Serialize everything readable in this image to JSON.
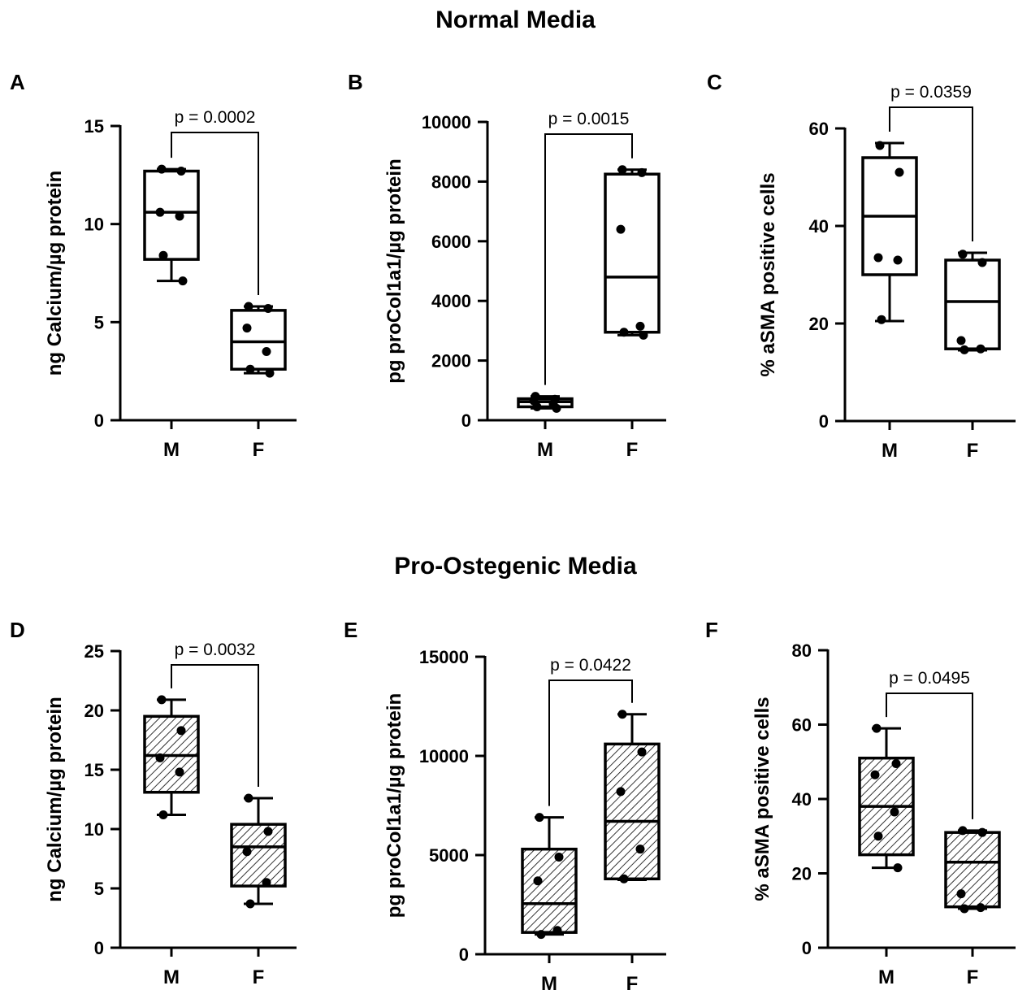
{
  "sections": {
    "top": "Normal Media",
    "bottom": "Pro-Ostegenic Media"
  },
  "chart_data": [
    {
      "type": "box",
      "panel": "A",
      "ylabel": "ng Calcium/µg protein",
      "ylim": [
        0,
        15
      ],
      "yticks": [
        0,
        5,
        10,
        15
      ],
      "categories": [
        "M",
        "F"
      ],
      "hatched": false,
      "pvalue": "p = 0.0002",
      "boxes": [
        {
          "category": "M",
          "min": 7.1,
          "q1": 8.2,
          "median": 10.6,
          "q3": 12.7,
          "max": 12.8,
          "points": [
            12.8,
            12.7,
            10.6,
            10.4,
            8.4,
            7.1
          ]
        },
        {
          "category": "F",
          "min": 2.4,
          "q1": 2.6,
          "median": 4.0,
          "q3": 5.6,
          "max": 5.8,
          "points": [
            5.8,
            5.7,
            4.7,
            3.5,
            2.6,
            2.4
          ]
        }
      ]
    },
    {
      "type": "box",
      "panel": "B",
      "ylabel": "pg proCol1a1/µg protein",
      "ylim": [
        0,
        10000
      ],
      "yticks": [
        0,
        2000,
        4000,
        6000,
        8000,
        10000
      ],
      "categories": [
        "M",
        "F"
      ],
      "hatched": false,
      "pvalue": "p = 0.0015",
      "boxes": [
        {
          "category": "M",
          "min": 400,
          "q1": 450,
          "median": 620,
          "q3": 720,
          "max": 800,
          "points": [
            800,
            700,
            650,
            550,
            450,
            400
          ]
        },
        {
          "category": "F",
          "min": 2850,
          "q1": 2950,
          "median": 4800,
          "q3": 8250,
          "max": 8400,
          "points": [
            8400,
            8300,
            6400,
            3150,
            2950,
            2850
          ]
        }
      ]
    },
    {
      "type": "box",
      "panel": "C",
      "ylabel": "% aSMA positive cells",
      "ylim": [
        0,
        60
      ],
      "yticks": [
        0,
        20,
        40,
        60
      ],
      "categories": [
        "M",
        "F"
      ],
      "hatched": false,
      "pvalue": "p = 0.0359",
      "boxes": [
        {
          "category": "M",
          "min": 20.5,
          "q1": 30.0,
          "median": 42.0,
          "q3": 54.0,
          "max": 57.0,
          "points": [
            56.5,
            51.0,
            33.5,
            33.0,
            20.8
          ]
        },
        {
          "category": "F",
          "min": 14.5,
          "q1": 14.8,
          "median": 24.5,
          "q3": 33.0,
          "max": 34.5,
          "points": [
            34.2,
            32.5,
            16.5,
            14.8,
            14.6
          ]
        }
      ]
    },
    {
      "type": "box",
      "panel": "D",
      "ylabel": "ng Calcium/µg protein",
      "ylim": [
        0,
        25
      ],
      "yticks": [
        0,
        5,
        10,
        15,
        20,
        25
      ],
      "categories": [
        "M",
        "F"
      ],
      "hatched": true,
      "pvalue": "p = 0.0032",
      "boxes": [
        {
          "category": "M",
          "min": 11.2,
          "q1": 13.1,
          "median": 16.2,
          "q3": 19.5,
          "max": 20.9,
          "points": [
            20.9,
            18.3,
            16.0,
            14.8,
            11.2
          ]
        },
        {
          "category": "F",
          "min": 3.7,
          "q1": 5.2,
          "median": 8.5,
          "q3": 10.4,
          "max": 12.6,
          "points": [
            12.6,
            9.8,
            8.1,
            5.5,
            3.7
          ]
        }
      ]
    },
    {
      "type": "box",
      "panel": "E",
      "ylabel": "pg proCol1a1/µg protein",
      "ylim": [
        0,
        15000
      ],
      "yticks": [
        0,
        5000,
        10000,
        15000
      ],
      "categories": [
        "M",
        "F"
      ],
      "hatched": true,
      "pvalue": "p = 0.0422",
      "boxes": [
        {
          "category": "M",
          "min": 1000,
          "q1": 1100,
          "median": 2550,
          "q3": 5300,
          "max": 6900,
          "points": [
            6900,
            4900,
            3700,
            1200,
            1000
          ]
        },
        {
          "category": "F",
          "min": 3750,
          "q1": 3800,
          "median": 6700,
          "q3": 10600,
          "max": 12100,
          "points": [
            12100,
            10200,
            8200,
            5300,
            3800
          ]
        }
      ]
    },
    {
      "type": "box",
      "panel": "F",
      "ylabel": "% aSMA positive cells",
      "ylim": [
        0,
        80
      ],
      "yticks": [
        0,
        20,
        40,
        60,
        80
      ],
      "categories": [
        "M",
        "F"
      ],
      "hatched": true,
      "pvalue": "p = 0.0495",
      "boxes": [
        {
          "category": "M",
          "min": 21.5,
          "q1": 25.0,
          "median": 38.0,
          "q3": 51.0,
          "max": 59.0,
          "points": [
            59.0,
            49.5,
            46.5,
            36.5,
            30.0,
            21.5
          ]
        },
        {
          "category": "F",
          "min": 10.5,
          "q1": 11.0,
          "median": 23.0,
          "q3": 31.0,
          "max": 31.5,
          "points": [
            31.5,
            31.0,
            14.5,
            10.8,
            10.5
          ]
        }
      ]
    }
  ]
}
